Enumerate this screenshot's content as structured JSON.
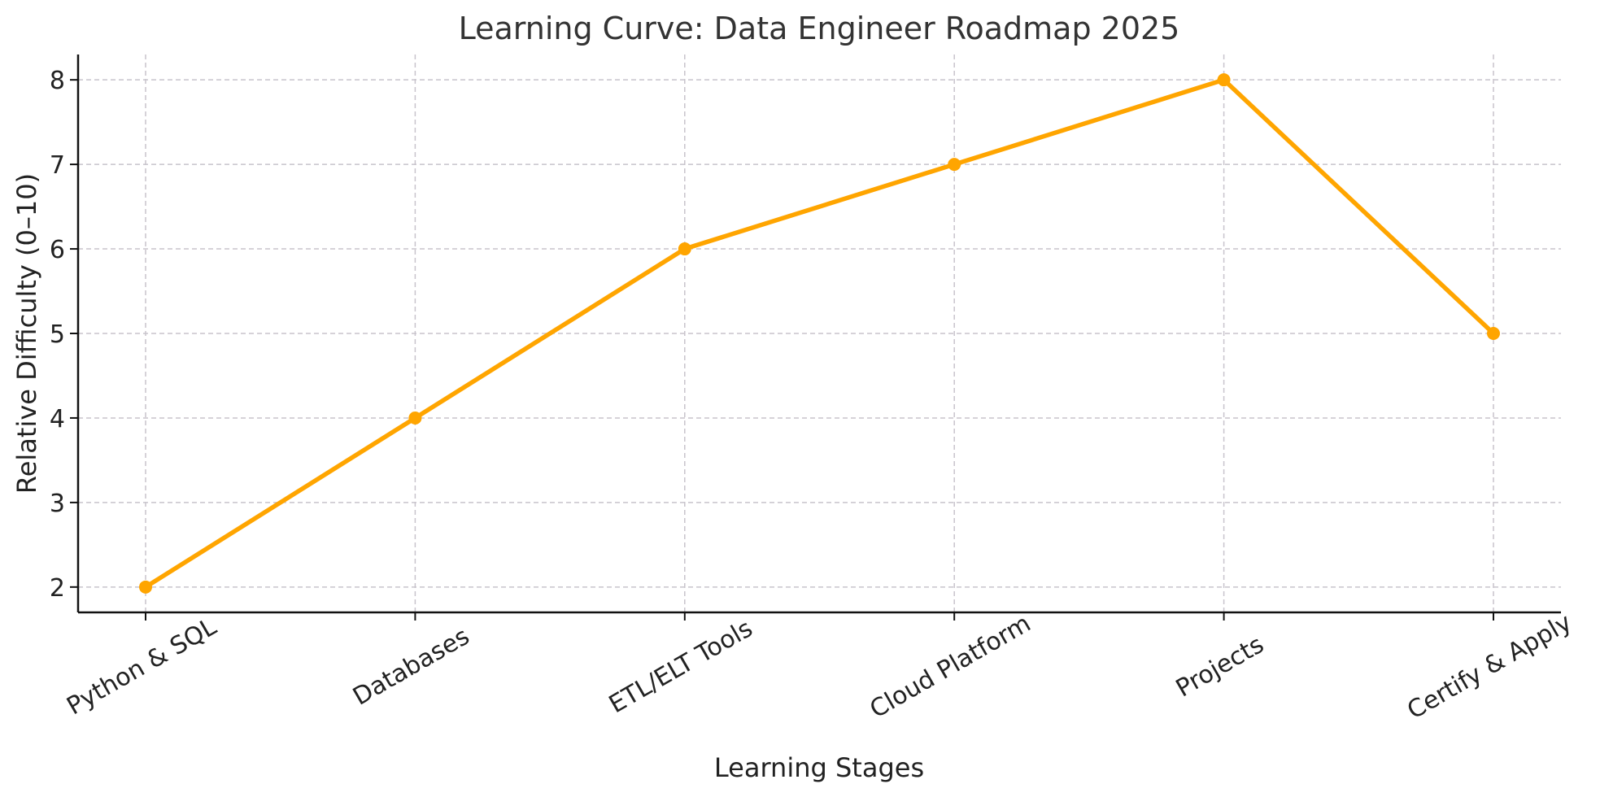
{
  "chart_data": {
    "type": "line",
    "title": "Learning Curve: Data Engineer Roadmap 2025",
    "xlabel": "Learning Stages",
    "ylabel": "Relative Difficulty (0–10)",
    "categories": [
      "Python & SQL",
      "Databases",
      "ETL/ELT Tools",
      "Cloud Platform",
      "Projects",
      "Certify & Apply"
    ],
    "series": [
      {
        "values": [
          2,
          4,
          6,
          7,
          8,
          5
        ],
        "color": "#FFA500"
      }
    ],
    "yticks": [
      2,
      3,
      4,
      5,
      6,
      7,
      8
    ],
    "ylim": [
      1.7,
      8.3
    ],
    "grid": true,
    "markers": true
  }
}
